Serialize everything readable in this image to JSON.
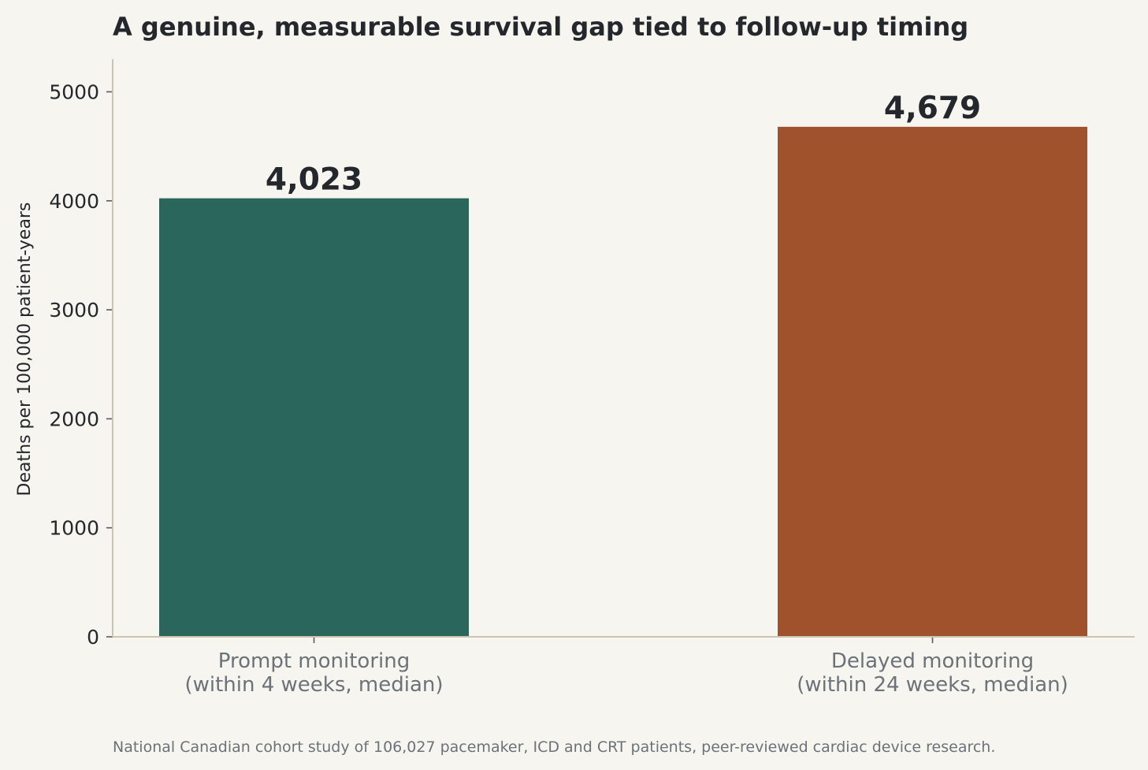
{
  "chart_data": {
    "type": "bar",
    "title": "A genuine, measurable survival gap tied to follow-up timing",
    "ylabel": "Deaths per 100,000 patient-years",
    "xlabel": "",
    "categories": [
      [
        "Prompt monitoring",
        "(within 4 weeks, median)"
      ],
      [
        "Delayed monitoring",
        "(within 24 weeks, median)"
      ]
    ],
    "values": [
      4023,
      4679
    ],
    "value_labels": [
      "4,023",
      "4,679"
    ],
    "colors": [
      "#2b665c",
      "#a0522d"
    ],
    "ylim": [
      0,
      5300
    ],
    "yticks": [
      0,
      1000,
      2000,
      3000,
      4000,
      5000
    ],
    "grid": false,
    "footnote": "National Canadian cohort study of 106,027 pacemaker, ICD and CRT patients, peer-reviewed cardiac device research."
  }
}
